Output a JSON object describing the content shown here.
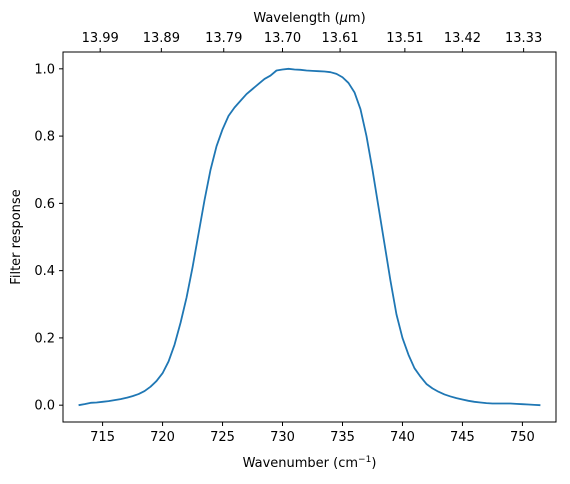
{
  "chart_data": {
    "type": "line",
    "title": "",
    "xlabel": "Wavenumber (cm",
    "xlabel_sup": "−1",
    "xlabel_close": ")",
    "ylabel": "Filter response",
    "top_axis_label": "Wavelength (",
    "top_axis_label_mu": "μ",
    "top_axis_label_unit": "m)",
    "xlim": [
      711.7,
      752.8
    ],
    "ylim": [
      -0.05,
      1.05
    ],
    "x_ticks": [
      715,
      720,
      725,
      730,
      735,
      740,
      745,
      750
    ],
    "y_ticks": [
      0.0,
      0.2,
      0.4,
      0.6,
      0.8,
      1.0
    ],
    "x_tick_labels": [
      "715",
      "720",
      "725",
      "730",
      "735",
      "740",
      "745",
      "750"
    ],
    "y_tick_labels": [
      "0.0",
      "0.2",
      "0.4",
      "0.6",
      "0.8",
      "1.0"
    ],
    "top_ticks": [
      {
        "wavenumber": 714.8,
        "label": "13.99"
      },
      {
        "wavenumber": 719.9,
        "label": "13.89"
      },
      {
        "wavenumber": 725.1,
        "label": "13.79"
      },
      {
        "wavenumber": 730.0,
        "label": "13.70"
      },
      {
        "wavenumber": 734.8,
        "label": "13.61"
      },
      {
        "wavenumber": 740.2,
        "label": "13.51"
      },
      {
        "wavenumber": 745.0,
        "label": "13.42"
      },
      {
        "wavenumber": 750.1,
        "label": "13.33"
      }
    ],
    "grid": false,
    "legend": "none",
    "series": [
      {
        "color": "#1f77b4",
        "x": [
          713.0,
          713.5,
          714.0,
          714.5,
          715.0,
          715.5,
          716.0,
          716.5,
          717.0,
          717.5,
          718.0,
          718.5,
          719.0,
          719.5,
          720.0,
          720.5,
          721.0,
          721.5,
          722.0,
          722.5,
          723.0,
          723.5,
          724.0,
          724.5,
          725.0,
          725.5,
          726.0,
          726.5,
          727.0,
          727.5,
          728.0,
          728.5,
          729.0,
          729.5,
          730.0,
          730.5,
          731.0,
          731.5,
          732.0,
          732.5,
          733.0,
          733.5,
          734.0,
          734.5,
          735.0,
          735.5,
          736.0,
          736.5,
          737.0,
          737.5,
          738.0,
          738.5,
          739.0,
          739.5,
          740.0,
          740.5,
          741.0,
          741.5,
          742.0,
          742.5,
          743.0,
          743.5,
          744.0,
          744.5,
          745.0,
          745.5,
          746.0,
          746.5,
          747.0,
          747.5,
          748.0,
          748.5,
          749.0,
          749.5,
          750.0,
          750.5,
          751.0,
          751.5
        ],
        "y": [
          0.0,
          0.003,
          0.007,
          0.008,
          0.01,
          0.012,
          0.015,
          0.018,
          0.022,
          0.027,
          0.033,
          0.042,
          0.055,
          0.072,
          0.095,
          0.13,
          0.18,
          0.245,
          0.32,
          0.41,
          0.51,
          0.61,
          0.7,
          0.77,
          0.82,
          0.86,
          0.885,
          0.905,
          0.925,
          0.94,
          0.955,
          0.97,
          0.98,
          0.995,
          0.998,
          1.0,
          0.998,
          0.997,
          0.995,
          0.994,
          0.993,
          0.992,
          0.99,
          0.985,
          0.975,
          0.958,
          0.93,
          0.88,
          0.8,
          0.7,
          0.59,
          0.48,
          0.37,
          0.27,
          0.2,
          0.15,
          0.11,
          0.085,
          0.063,
          0.05,
          0.04,
          0.032,
          0.026,
          0.021,
          0.017,
          0.013,
          0.01,
          0.008,
          0.006,
          0.005,
          0.005,
          0.005,
          0.005,
          0.004,
          0.003,
          0.002,
          0.001,
          0.0
        ]
      }
    ]
  }
}
